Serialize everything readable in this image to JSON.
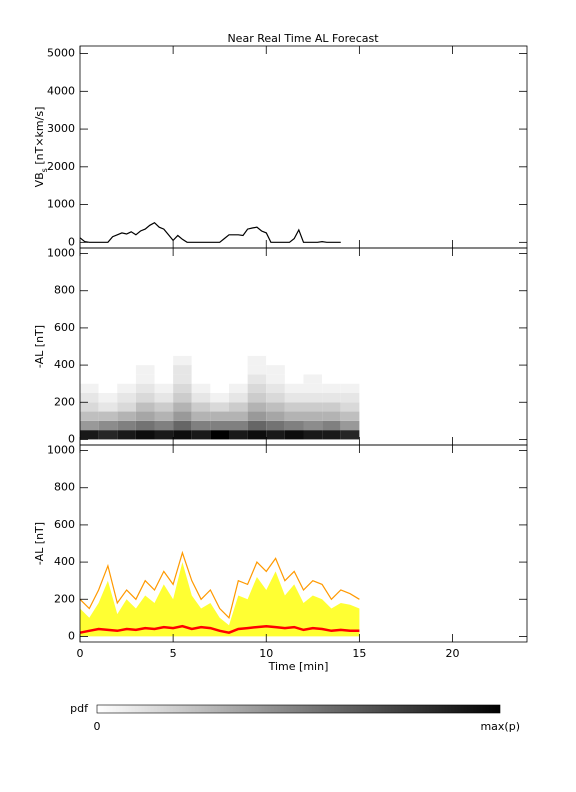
{
  "chart_data": [
    {
      "type": "line",
      "title": "Near Real Time AL Forecast",
      "ylabel": {
        "main": "VB",
        "sub": "s",
        "rest": " [nT×km/s]"
      },
      "xlim": [
        0,
        24
      ],
      "xticks": [
        0,
        5,
        10,
        15,
        20
      ],
      "ylim": [
        -150,
        5200
      ],
      "yticks": [
        0,
        1000,
        2000,
        3000,
        4000,
        5000
      ],
      "x": [
        0,
        0.25,
        0.5,
        0.75,
        1,
        1.25,
        1.5,
        1.75,
        2,
        2.25,
        2.5,
        2.75,
        3,
        3.25,
        3.5,
        3.75,
        4,
        4.25,
        4.5,
        4.75,
        5,
        5.25,
        5.5,
        5.75,
        6,
        6.25,
        6.5,
        6.75,
        7,
        7.25,
        7.5,
        7.75,
        8,
        8.25,
        8.5,
        8.75,
        9,
        9.25,
        9.5,
        9.75,
        10,
        10.25,
        10.5,
        10.75,
        11,
        11.25,
        11.5,
        11.75,
        12,
        12.25,
        12.5,
        12.75,
        13,
        13.25,
        13.5,
        13.75,
        14
      ],
      "series": [
        {
          "color": "#000000",
          "values": [
            120,
            20,
            0,
            0,
            0,
            0,
            0,
            150,
            200,
            250,
            220,
            280,
            200,
            300,
            350,
            450,
            520,
            400,
            350,
            200,
            50,
            180,
            80,
            0,
            0,
            0,
            0,
            0,
            0,
            0,
            0,
            100,
            200,
            200,
            200,
            180,
            350,
            380,
            400,
            300,
            250,
            0,
            0,
            0,
            0,
            0,
            100,
            330,
            0,
            0,
            0,
            0,
            20,
            0,
            0,
            0,
            0
          ]
        }
      ]
    },
    {
      "type": "heatmap",
      "ylabel": "-AL [nT]",
      "xlim": [
        0,
        24
      ],
      "xticks": [
        0,
        5,
        10,
        15,
        20
      ],
      "ylim": [
        -30,
        1030
      ],
      "yticks": [
        0,
        200,
        400,
        600,
        800,
        1000
      ],
      "xbins": [
        0,
        1,
        2,
        3,
        4,
        5,
        6,
        7,
        8,
        9,
        10,
        11,
        12,
        13,
        14,
        15
      ],
      "ybins": [
        0,
        50,
        100,
        150,
        200,
        250,
        300,
        350,
        400,
        450,
        500
      ],
      "values": [
        [
          0.9,
          0.85,
          0.9,
          0.95,
          0.9,
          0.95,
          0.9,
          1.0,
          0.9,
          0.95,
          0.9,
          0.95,
          0.9,
          0.9,
          0.85
        ],
        [
          0.4,
          0.45,
          0.5,
          0.55,
          0.5,
          0.6,
          0.5,
          0.5,
          0.5,
          0.6,
          0.55,
          0.5,
          0.45,
          0.5,
          0.4
        ],
        [
          0.25,
          0.25,
          0.3,
          0.35,
          0.3,
          0.4,
          0.3,
          0.3,
          0.3,
          0.4,
          0.35,
          0.3,
          0.3,
          0.3,
          0.25
        ],
        [
          0.15,
          0.1,
          0.15,
          0.25,
          0.2,
          0.3,
          0.2,
          0.15,
          0.2,
          0.3,
          0.25,
          0.2,
          0.2,
          0.2,
          0.15
        ],
        [
          0.1,
          0.05,
          0.1,
          0.15,
          0.1,
          0.2,
          0.1,
          0.05,
          0.1,
          0.2,
          0.15,
          0.1,
          0.1,
          0.1,
          0.1
        ],
        [
          0.05,
          0,
          0.05,
          0.1,
          0.05,
          0.15,
          0.05,
          0,
          0.05,
          0.15,
          0.1,
          0.05,
          0.05,
          0.05,
          0.05
        ],
        [
          0,
          0,
          0,
          0.05,
          0,
          0.1,
          0,
          0,
          0,
          0.1,
          0.05,
          0,
          0.05,
          0,
          0
        ],
        [
          0,
          0,
          0,
          0.05,
          0,
          0.1,
          0,
          0,
          0,
          0.05,
          0.05,
          0,
          0,
          0,
          0
        ],
        [
          0,
          0,
          0,
          0,
          0,
          0.05,
          0,
          0,
          0,
          0.05,
          0,
          0,
          0,
          0,
          0
        ],
        [
          0,
          0,
          0,
          0,
          0,
          0,
          0,
          0,
          0,
          0,
          0,
          0,
          0,
          0,
          0
        ]
      ]
    },
    {
      "type": "line",
      "ylabel": "-AL [nT]",
      "xlabel": "Time [min]",
      "xlim": [
        0,
        24
      ],
      "xticks": [
        0,
        5,
        10,
        15,
        20
      ],
      "ylim": [
        -30,
        1030
      ],
      "yticks": [
        0,
        200,
        400,
        600,
        800,
        1000
      ],
      "x": [
        0,
        0.5,
        1,
        1.5,
        2,
        2.5,
        3,
        3.5,
        4,
        4.5,
        5,
        5.5,
        6,
        6.5,
        7,
        7.5,
        8,
        8.5,
        9,
        9.5,
        10,
        10.5,
        11,
        11.5,
        12,
        12.5,
        13,
        13.5,
        14,
        14.5,
        15
      ],
      "series": [
        {
          "color": "#ffff33",
          "area": true,
          "values": [
            150,
            100,
            180,
            300,
            120,
            200,
            150,
            220,
            180,
            280,
            200,
            400,
            220,
            150,
            180,
            100,
            60,
            220,
            200,
            320,
            250,
            350,
            220,
            280,
            180,
            220,
            200,
            150,
            180,
            170,
            150
          ]
        },
        {
          "color": "#ff9900",
          "values": [
            200,
            150,
            250,
            380,
            180,
            250,
            200,
            300,
            250,
            350,
            280,
            450,
            300,
            200,
            250,
            150,
            100,
            300,
            280,
            400,
            350,
            420,
            300,
            350,
            250,
            300,
            280,
            200,
            250,
            230,
            200
          ]
        },
        {
          "color": "#ff0000",
          "linewidth": 2.5,
          "values": [
            20,
            30,
            40,
            35,
            30,
            40,
            35,
            45,
            40,
            50,
            45,
            55,
            40,
            50,
            45,
            30,
            20,
            40,
            45,
            50,
            55,
            50,
            45,
            50,
            35,
            45,
            40,
            30,
            35,
            30,
            30
          ]
        }
      ]
    }
  ],
  "colorbar": {
    "label": "pdf",
    "min_label": "0",
    "max_label": "max(p)"
  }
}
